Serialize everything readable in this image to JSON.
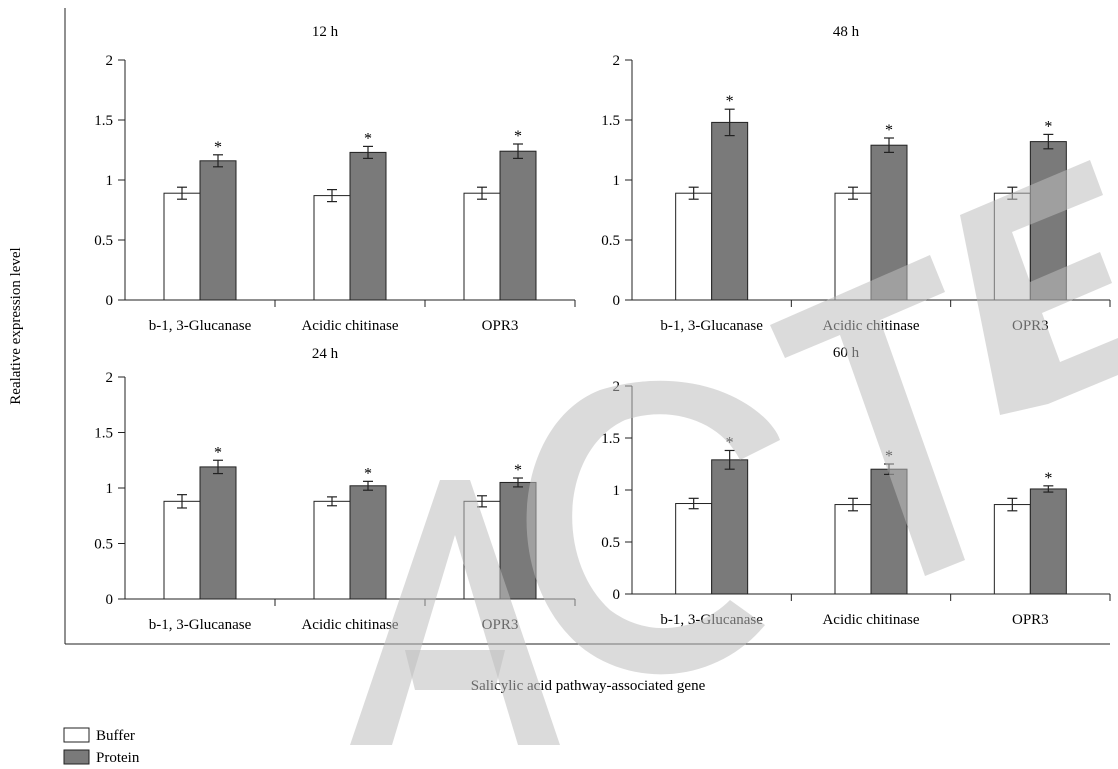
{
  "figure": {
    "ylabel": "Realative expression level",
    "xlabel": "Salicylic acid pathway-associated gene",
    "watermark": "RETRACTED"
  },
  "legend": {
    "placement": "bottom-left",
    "items": [
      {
        "label": "Buffer",
        "color": "#ffffff"
      },
      {
        "label": "Protein",
        "color": "#7a7a7a"
      }
    ]
  },
  "chart_data": [
    {
      "type": "bar",
      "title": "12 h",
      "categories": [
        "b-1, 3-Glucanase",
        "Acidic chitinase",
        "OPR3"
      ],
      "ylim": [
        0,
        2
      ],
      "yticks": [
        "0",
        "0.5",
        "1",
        "1.5",
        "2"
      ],
      "series": [
        {
          "name": "Buffer",
          "values": [
            0.89,
            0.87,
            0.89
          ],
          "errors": [
            0.05,
            0.05,
            0.05
          ]
        },
        {
          "name": "Protein",
          "values": [
            1.16,
            1.23,
            1.24
          ],
          "errors": [
            0.05,
            0.05,
            0.06
          ]
        }
      ],
      "annotations": [
        "*",
        "*",
        "*"
      ]
    },
    {
      "type": "bar",
      "title": "48 h",
      "categories": [
        "b-1, 3-Glucanase",
        "Acidic chitinase",
        "OPR3"
      ],
      "ylim": [
        0,
        2
      ],
      "yticks": [
        "0",
        "0.5",
        "1",
        "1.5",
        "2"
      ],
      "series": [
        {
          "name": "Buffer",
          "values": [
            0.89,
            0.89,
            0.89
          ],
          "errors": [
            0.05,
            0.05,
            0.05
          ]
        },
        {
          "name": "Protein",
          "values": [
            1.48,
            1.29,
            1.32
          ],
          "errors": [
            0.11,
            0.06,
            0.06
          ]
        }
      ],
      "annotations": [
        "*",
        "*",
        "*"
      ]
    },
    {
      "type": "bar",
      "title": "24 h",
      "categories": [
        "b-1, 3-Glucanase",
        "Acidic chitinase",
        "OPR3"
      ],
      "ylim": [
        0,
        2
      ],
      "yticks": [
        "0",
        "0.5",
        "1",
        "1.5",
        "2"
      ],
      "series": [
        {
          "name": "Buffer",
          "values": [
            0.88,
            0.88,
            0.88
          ],
          "errors": [
            0.06,
            0.04,
            0.05
          ]
        },
        {
          "name": "Protein",
          "values": [
            1.19,
            1.02,
            1.05
          ],
          "errors": [
            0.06,
            0.04,
            0.04
          ]
        }
      ],
      "annotations": [
        "*",
        "*",
        "*"
      ]
    },
    {
      "type": "bar",
      "title": "60 h",
      "categories": [
        "b-1, 3-Glucanase",
        "Acidic chitinase",
        "OPR3"
      ],
      "ylim": [
        0,
        2
      ],
      "yticks": [
        "0",
        "0.5",
        "1",
        "1.5",
        "2"
      ],
      "series": [
        {
          "name": "Buffer",
          "values": [
            0.87,
            0.86,
            0.86
          ],
          "errors": [
            0.05,
            0.06,
            0.06
          ]
        },
        {
          "name": "Protein",
          "values": [
            1.29,
            1.2,
            1.01
          ],
          "errors": [
            0.09,
            0.05,
            0.03
          ]
        }
      ],
      "annotations": [
        "*",
        "*",
        "*"
      ]
    }
  ]
}
